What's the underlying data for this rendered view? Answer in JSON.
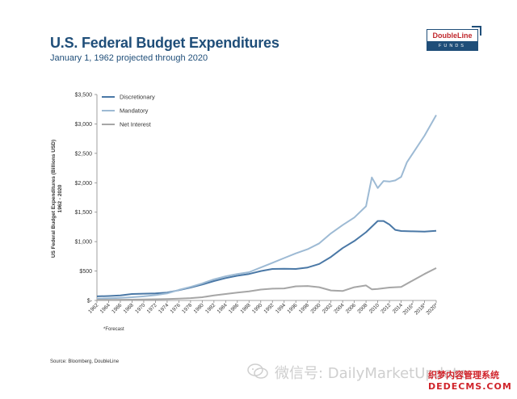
{
  "header": {
    "title": "U.S. Federal Budget Expenditures",
    "subtitle": "January 1, 1962 projected through 2020"
  },
  "logo": {
    "top": "DoubleLine",
    "bottom": "FUNDS"
  },
  "footer": {
    "forecast_note": "*Forecast",
    "source": "Source: Bloomberg, DoubleLine"
  },
  "watermark": {
    "text": "微信号: DailyMarketUpdate",
    "badge_top": "织梦内容管理系统",
    "badge_bottom": "DEDECMS.COM"
  },
  "chart_data": {
    "type": "line",
    "ylabel_line1": "US Federal Budget Expenditures (Billions USD)",
    "ylabel_line2": "1962 - 2020",
    "ylim": [
      0,
      3500
    ],
    "xlim": [
      1962,
      2020
    ],
    "yticks": [
      {
        "value": 0,
        "label": "$-"
      },
      {
        "value": 500,
        "label": "$500"
      },
      {
        "value": 1000,
        "label": "$1,000"
      },
      {
        "value": 1500,
        "label": "$1,500"
      },
      {
        "value": 2000,
        "label": "$2,000"
      },
      {
        "value": 2500,
        "label": "$2,500"
      },
      {
        "value": 3000,
        "label": "$3,000"
      },
      {
        "value": 3500,
        "label": "$3,500"
      }
    ],
    "xticks": [
      {
        "value": 1962,
        "label": "1962"
      },
      {
        "value": 1964,
        "label": "1964"
      },
      {
        "value": 1966,
        "label": "1966"
      },
      {
        "value": 1968,
        "label": "1968"
      },
      {
        "value": 1970,
        "label": "1970"
      },
      {
        "value": 1972,
        "label": "1972"
      },
      {
        "value": 1974,
        "label": "1974"
      },
      {
        "value": 1976,
        "label": "1976"
      },
      {
        "value": 1978,
        "label": "1978"
      },
      {
        "value": 1980,
        "label": "1980"
      },
      {
        "value": 1982,
        "label": "1982"
      },
      {
        "value": 1984,
        "label": "1984"
      },
      {
        "value": 1986,
        "label": "1986"
      },
      {
        "value": 1988,
        "label": "1988"
      },
      {
        "value": 1990,
        "label": "1990"
      },
      {
        "value": 1992,
        "label": "1992"
      },
      {
        "value": 1994,
        "label": "1994"
      },
      {
        "value": 1996,
        "label": "1996"
      },
      {
        "value": 1998,
        "label": "1998"
      },
      {
        "value": 2000,
        "label": "2000"
      },
      {
        "value": 2002,
        "label": "2002"
      },
      {
        "value": 2004,
        "label": "2004"
      },
      {
        "value": 2006,
        "label": "2006"
      },
      {
        "value": 2008,
        "label": "2008"
      },
      {
        "value": 2010,
        "label": "2010"
      },
      {
        "value": 2012,
        "label": "2012"
      },
      {
        "value": 2014,
        "label": "2014"
      },
      {
        "value": 2016,
        "label": "2016*"
      },
      {
        "value": 2018,
        "label": "2018*"
      },
      {
        "value": 2020,
        "label": "2020*"
      }
    ],
    "legend_position": "top-left",
    "grid": false,
    "series": [
      {
        "name": "Discretionary",
        "color": "#4a78a6",
        "x": [
          1962,
          1964,
          1966,
          1968,
          1970,
          1972,
          1974,
          1976,
          1978,
          1980,
          1982,
          1984,
          1986,
          1988,
          1990,
          1992,
          1994,
          1996,
          1998,
          2000,
          2002,
          2004,
          2006,
          2008,
          2010,
          2011,
          2012,
          2013,
          2014,
          2016,
          2018,
          2020
        ],
        "values": [
          70,
          75,
          85,
          110,
          115,
          120,
          135,
          175,
          220,
          270,
          330,
          380,
          420,
          450,
          500,
          535,
          540,
          535,
          560,
          620,
          740,
          890,
          1010,
          1160,
          1350,
          1350,
          1290,
          1200,
          1180,
          1175,
          1170,
          1185
        ]
      },
      {
        "name": "Mandatory",
        "color": "#9dbad4",
        "x": [
          1962,
          1964,
          1966,
          1968,
          1970,
          1972,
          1974,
          1976,
          1978,
          1980,
          1982,
          1984,
          1986,
          1988,
          1990,
          1992,
          1994,
          1996,
          1998,
          2000,
          2002,
          2004,
          2006,
          2008,
          2009,
          2010,
          2011,
          2012,
          2013,
          2014,
          2015,
          2016,
          2018,
          2020
        ],
        "values": [
          30,
          35,
          45,
          55,
          70,
          90,
          120,
          180,
          230,
          290,
          360,
          410,
          450,
          480,
          560,
          640,
          720,
          800,
          870,
          970,
          1140,
          1280,
          1410,
          1600,
          2090,
          1910,
          2030,
          2020,
          2040,
          2100,
          2350,
          2500,
          2800,
          3150
        ]
      },
      {
        "name": "Net Interest",
        "color": "#a6a6a6",
        "x": [
          1962,
          1964,
          1966,
          1968,
          1970,
          1972,
          1974,
          1976,
          1978,
          1980,
          1982,
          1984,
          1986,
          1988,
          1990,
          1992,
          1994,
          1996,
          1998,
          2000,
          2002,
          2004,
          2006,
          2008,
          2009,
          2010,
          2012,
          2014,
          2016,
          2018,
          2020
        ],
        "values": [
          10,
          11,
          12,
          14,
          18,
          20,
          25,
          30,
          40,
          55,
          85,
          110,
          135,
          155,
          185,
          200,
          205,
          240,
          245,
          225,
          170,
          160,
          225,
          255,
          190,
          195,
          220,
          230,
          340,
          450,
          550
        ]
      }
    ]
  }
}
